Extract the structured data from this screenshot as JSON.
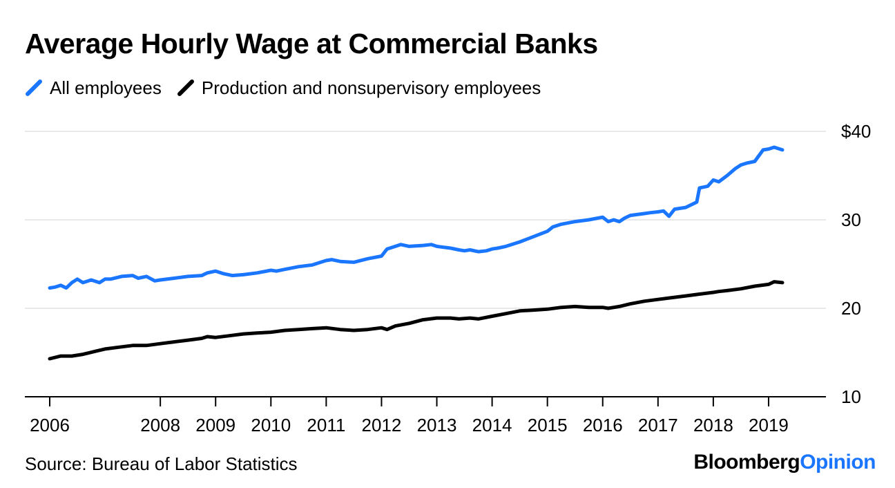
{
  "chart_data": {
    "type": "line",
    "title": "Average Hourly Wage at Commercial Banks",
    "xlabel": "",
    "ylabel": "",
    "ylim": [
      10,
      40
    ],
    "xlim": [
      2006,
      2019.5
    ],
    "yticks": [
      {
        "value": 40,
        "label": "$40"
      },
      {
        "value": 30,
        "label": "30"
      },
      {
        "value": 20,
        "label": "20"
      },
      {
        "value": 10,
        "label": "10"
      }
    ],
    "xticks": [
      {
        "value": 2006,
        "label": "2006"
      },
      {
        "value": 2008,
        "label": "2008"
      },
      {
        "value": 2009,
        "label": "2009"
      },
      {
        "value": 2010,
        "label": "2010"
      },
      {
        "value": 2011,
        "label": "2011"
      },
      {
        "value": 2012,
        "label": "2012"
      },
      {
        "value": 2013,
        "label": "2013"
      },
      {
        "value": 2014,
        "label": "2014"
      },
      {
        "value": 2015,
        "label": "2015"
      },
      {
        "value": 2016,
        "label": "2016"
      },
      {
        "value": 2017,
        "label": "2017"
      },
      {
        "value": 2018,
        "label": "2018"
      },
      {
        "value": 2019,
        "label": "2019"
      }
    ],
    "grid": true,
    "legend_position": "top-left",
    "series": [
      {
        "name": "All employees",
        "color": "#1a76ff",
        "x": [
          2006.0,
          2006.1,
          2006.2,
          2006.3,
          2006.4,
          2006.5,
          2006.6,
          2006.75,
          2006.9,
          2007.0,
          2007.1,
          2007.3,
          2007.5,
          2007.6,
          2007.75,
          2007.9,
          2008.0,
          2008.25,
          2008.5,
          2008.75,
          2008.85,
          2009.0,
          2009.15,
          2009.3,
          2009.5,
          2009.75,
          2010.0,
          2010.1,
          2010.25,
          2010.5,
          2010.75,
          2010.9,
          2011.0,
          2011.1,
          2011.25,
          2011.5,
          2011.75,
          2012.0,
          2012.1,
          2012.25,
          2012.35,
          2012.5,
          2012.75,
          2012.9,
          2013.0,
          2013.25,
          2013.4,
          2013.5,
          2013.6,
          2013.75,
          2013.9,
          2014.0,
          2014.1,
          2014.25,
          2014.5,
          2014.75,
          2015.0,
          2015.1,
          2015.25,
          2015.5,
          2015.75,
          2016.0,
          2016.1,
          2016.2,
          2016.3,
          2016.4,
          2016.5,
          2016.75,
          2016.85,
          2017.0,
          2017.1,
          2017.2,
          2017.3,
          2017.5,
          2017.6,
          2017.7,
          2017.75,
          2017.9,
          2018.0,
          2018.1,
          2018.25,
          2018.4,
          2018.5,
          2018.6,
          2018.75,
          2018.9,
          2019.0,
          2019.1,
          2019.25
        ],
        "values": [
          22.3,
          22.4,
          22.6,
          22.3,
          22.9,
          23.3,
          22.9,
          23.2,
          22.9,
          23.3,
          23.3,
          23.6,
          23.7,
          23.4,
          23.6,
          23.1,
          23.2,
          23.4,
          23.6,
          23.7,
          24.0,
          24.2,
          23.9,
          23.7,
          23.8,
          24.0,
          24.3,
          24.2,
          24.4,
          24.7,
          24.9,
          25.2,
          25.4,
          25.5,
          25.3,
          25.2,
          25.6,
          25.9,
          26.7,
          27.0,
          27.2,
          27.0,
          27.1,
          27.2,
          27.0,
          26.8,
          26.6,
          26.5,
          26.6,
          26.4,
          26.5,
          26.7,
          26.8,
          27.0,
          27.5,
          28.1,
          28.7,
          29.2,
          29.5,
          29.8,
          30.0,
          30.3,
          29.8,
          30.0,
          29.8,
          30.2,
          30.5,
          30.7,
          30.8,
          30.9,
          31.0,
          30.4,
          31.2,
          31.4,
          31.7,
          32.0,
          33.6,
          33.8,
          34.5,
          34.3,
          35.0,
          35.8,
          36.2,
          36.4,
          36.6,
          37.9,
          38.0,
          38.2,
          37.9
        ]
      },
      {
        "name": "Production and nonsupervisory employees",
        "color": "#000000",
        "x": [
          2006.0,
          2006.2,
          2006.4,
          2006.6,
          2006.8,
          2007.0,
          2007.25,
          2007.5,
          2007.75,
          2008.0,
          2008.25,
          2008.5,
          2008.75,
          2008.85,
          2009.0,
          2009.25,
          2009.5,
          2009.75,
          2010.0,
          2010.25,
          2010.5,
          2010.75,
          2011.0,
          2011.25,
          2011.5,
          2011.75,
          2012.0,
          2012.1,
          2012.25,
          2012.5,
          2012.75,
          2013.0,
          2013.25,
          2013.4,
          2013.6,
          2013.75,
          2014.0,
          2014.25,
          2014.5,
          2014.75,
          2015.0,
          2015.25,
          2015.5,
          2015.75,
          2016.0,
          2016.1,
          2016.3,
          2016.5,
          2016.75,
          2017.0,
          2017.25,
          2017.5,
          2017.75,
          2018.0,
          2018.1,
          2018.25,
          2018.5,
          2018.75,
          2019.0,
          2019.1,
          2019.25
        ],
        "values": [
          14.3,
          14.6,
          14.6,
          14.8,
          15.1,
          15.4,
          15.6,
          15.8,
          15.8,
          16.0,
          16.2,
          16.4,
          16.6,
          16.8,
          16.7,
          16.9,
          17.1,
          17.2,
          17.3,
          17.5,
          17.6,
          17.7,
          17.8,
          17.6,
          17.5,
          17.6,
          17.8,
          17.6,
          18.0,
          18.3,
          18.7,
          18.9,
          18.9,
          18.8,
          18.9,
          18.8,
          19.1,
          19.4,
          19.7,
          19.8,
          19.9,
          20.1,
          20.2,
          20.1,
          20.1,
          20.0,
          20.2,
          20.5,
          20.8,
          21.0,
          21.2,
          21.4,
          21.6,
          21.8,
          21.9,
          22.0,
          22.2,
          22.5,
          22.7,
          23.0,
          22.9
        ]
      }
    ]
  },
  "footer": {
    "source": "Source: Bureau of Labor Statistics",
    "brand_part1": "Bloomberg",
    "brand_part2": "Opinion"
  }
}
